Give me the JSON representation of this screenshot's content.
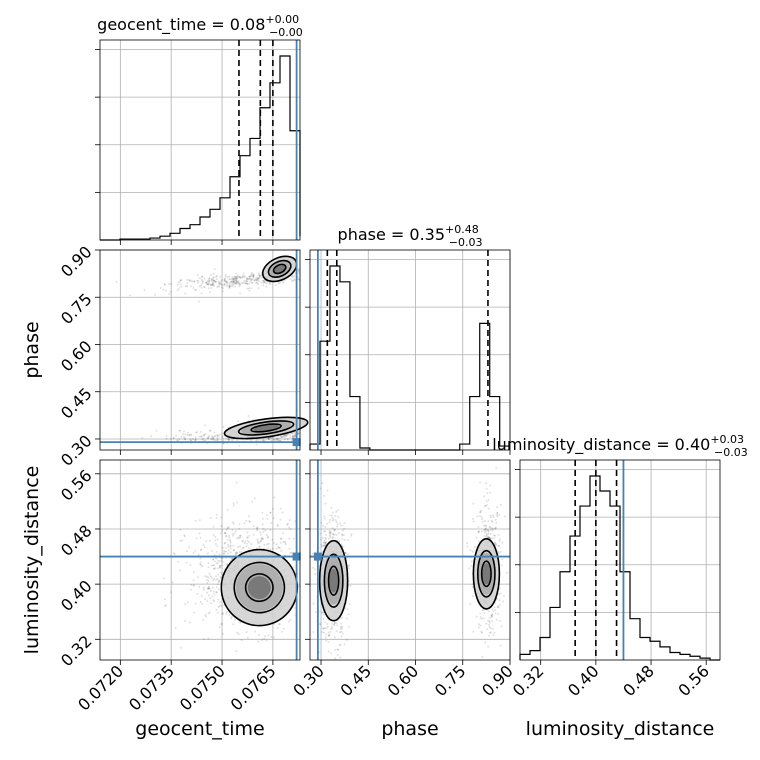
{
  "chart_data": {
    "type": "corner",
    "parameters": [
      {
        "name": "geocent_time",
        "label": "geocent_time",
        "range": [
          0.0714,
          0.0773
        ],
        "ticks": [
          "0.0720",
          "0.0735",
          "0.0750",
          "0.0765"
        ],
        "tick_values": [
          0.072,
          0.0735,
          0.075,
          0.0765
        ],
        "title_prefix": "geocent_time = 0.08",
        "title_plus": "+0.00",
        "title_minus": "−0.00",
        "median": 0.07613,
        "quantiles": [
          0.0755,
          0.07613,
          0.0765
        ],
        "truth": 0.0772,
        "hist_edges_start": 0.0714,
        "hist_bin_width": 0.000295,
        "hist_counts": [
          0,
          0,
          0.005,
          0.005,
          0.005,
          0.01,
          0.02,
          0.035,
          0.06,
          0.08,
          0.12,
          0.16,
          0.22,
          0.33,
          0.44,
          0.53,
          0.69,
          0.82,
          0.96,
          0.57,
          0.02
        ]
      },
      {
        "name": "phase",
        "label": "phase",
        "range": [
          0.265,
          0.9
        ],
        "ticks": [
          "0.30",
          "0.45",
          "0.60",
          "0.75",
          "0.90"
        ],
        "tick_values": [
          0.3,
          0.45,
          0.6,
          0.75,
          0.9
        ],
        "title_prefix": "phase = 0.35",
        "title_plus": "+0.48",
        "title_minus": "−0.03",
        "median": 0.35,
        "quantiles": [
          0.32,
          0.35,
          0.83
        ],
        "truth": 0.29,
        "hist_edges_start": 0.265,
        "hist_bin_width": 0.0317,
        "hist_counts": [
          0.03,
          0.55,
          0.93,
          0.85,
          0.27,
          0.01,
          0,
          0,
          0,
          0,
          0,
          0,
          0,
          0,
          0,
          0.03,
          0.27,
          0.64,
          0.27,
          0.02
        ]
      },
      {
        "name": "luminosity_distance",
        "label": "luminosity_distance",
        "range": [
          0.29,
          0.58
        ],
        "ticks": [
          "0.32",
          "0.40",
          "0.48",
          "0.56"
        ],
        "tick_values": [
          0.32,
          0.4,
          0.48,
          0.56
        ],
        "title_prefix": "luminosity_distance = 0.40",
        "title_plus": "+0.03",
        "title_minus": "−0.03",
        "median": 0.4,
        "quantiles": [
          0.37,
          0.4,
          0.43
        ],
        "truth": 0.44,
        "hist_edges_start": 0.29,
        "hist_bin_width": 0.0145,
        "hist_counts": [
          0.03,
          0.05,
          0.12,
          0.28,
          0.47,
          0.66,
          0.82,
          0.98,
          0.9,
          0.82,
          0.47,
          0.22,
          0.12,
          0.1,
          0.07,
          0.04,
          0.03,
          0.02,
          0.01,
          0
        ]
      }
    ],
    "truth_color": "#4682b4",
    "grid": true
  }
}
